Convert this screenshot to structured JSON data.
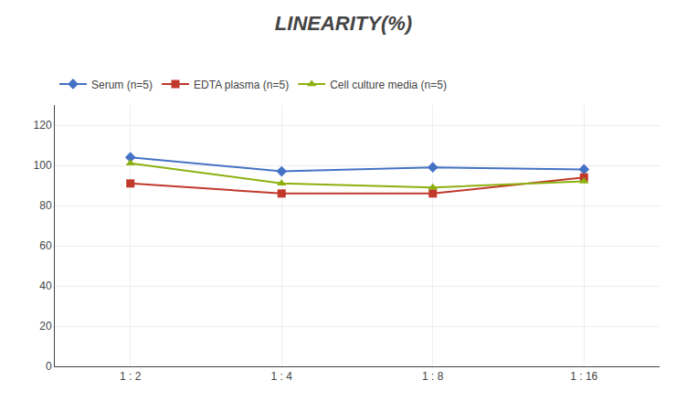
{
  "chart_data": {
    "type": "line",
    "title": "LINEARITY(%)",
    "categories": [
      "1 : 2",
      "1 : 4",
      "1 : 8",
      "1 : 16"
    ],
    "series": [
      {
        "name": "Serum (n=5)",
        "color": "#4472C4",
        "marker": "diamond",
        "values": [
          104,
          97,
          99,
          98
        ]
      },
      {
        "name": "EDTA plasma (n=5)",
        "color": "#C0392B",
        "marker": "square",
        "values": [
          91,
          86,
          86,
          94
        ]
      },
      {
        "name": "Cell culture media (n=5)",
        "color": "#8DB010",
        "marker": "triangle-up",
        "values": [
          101,
          91,
          89,
          92
        ]
      }
    ],
    "ylim": [
      0,
      130
    ],
    "yticks": [
      0,
      20,
      40,
      60,
      80,
      100,
      120
    ],
    "grid": true,
    "legend": "top"
  }
}
